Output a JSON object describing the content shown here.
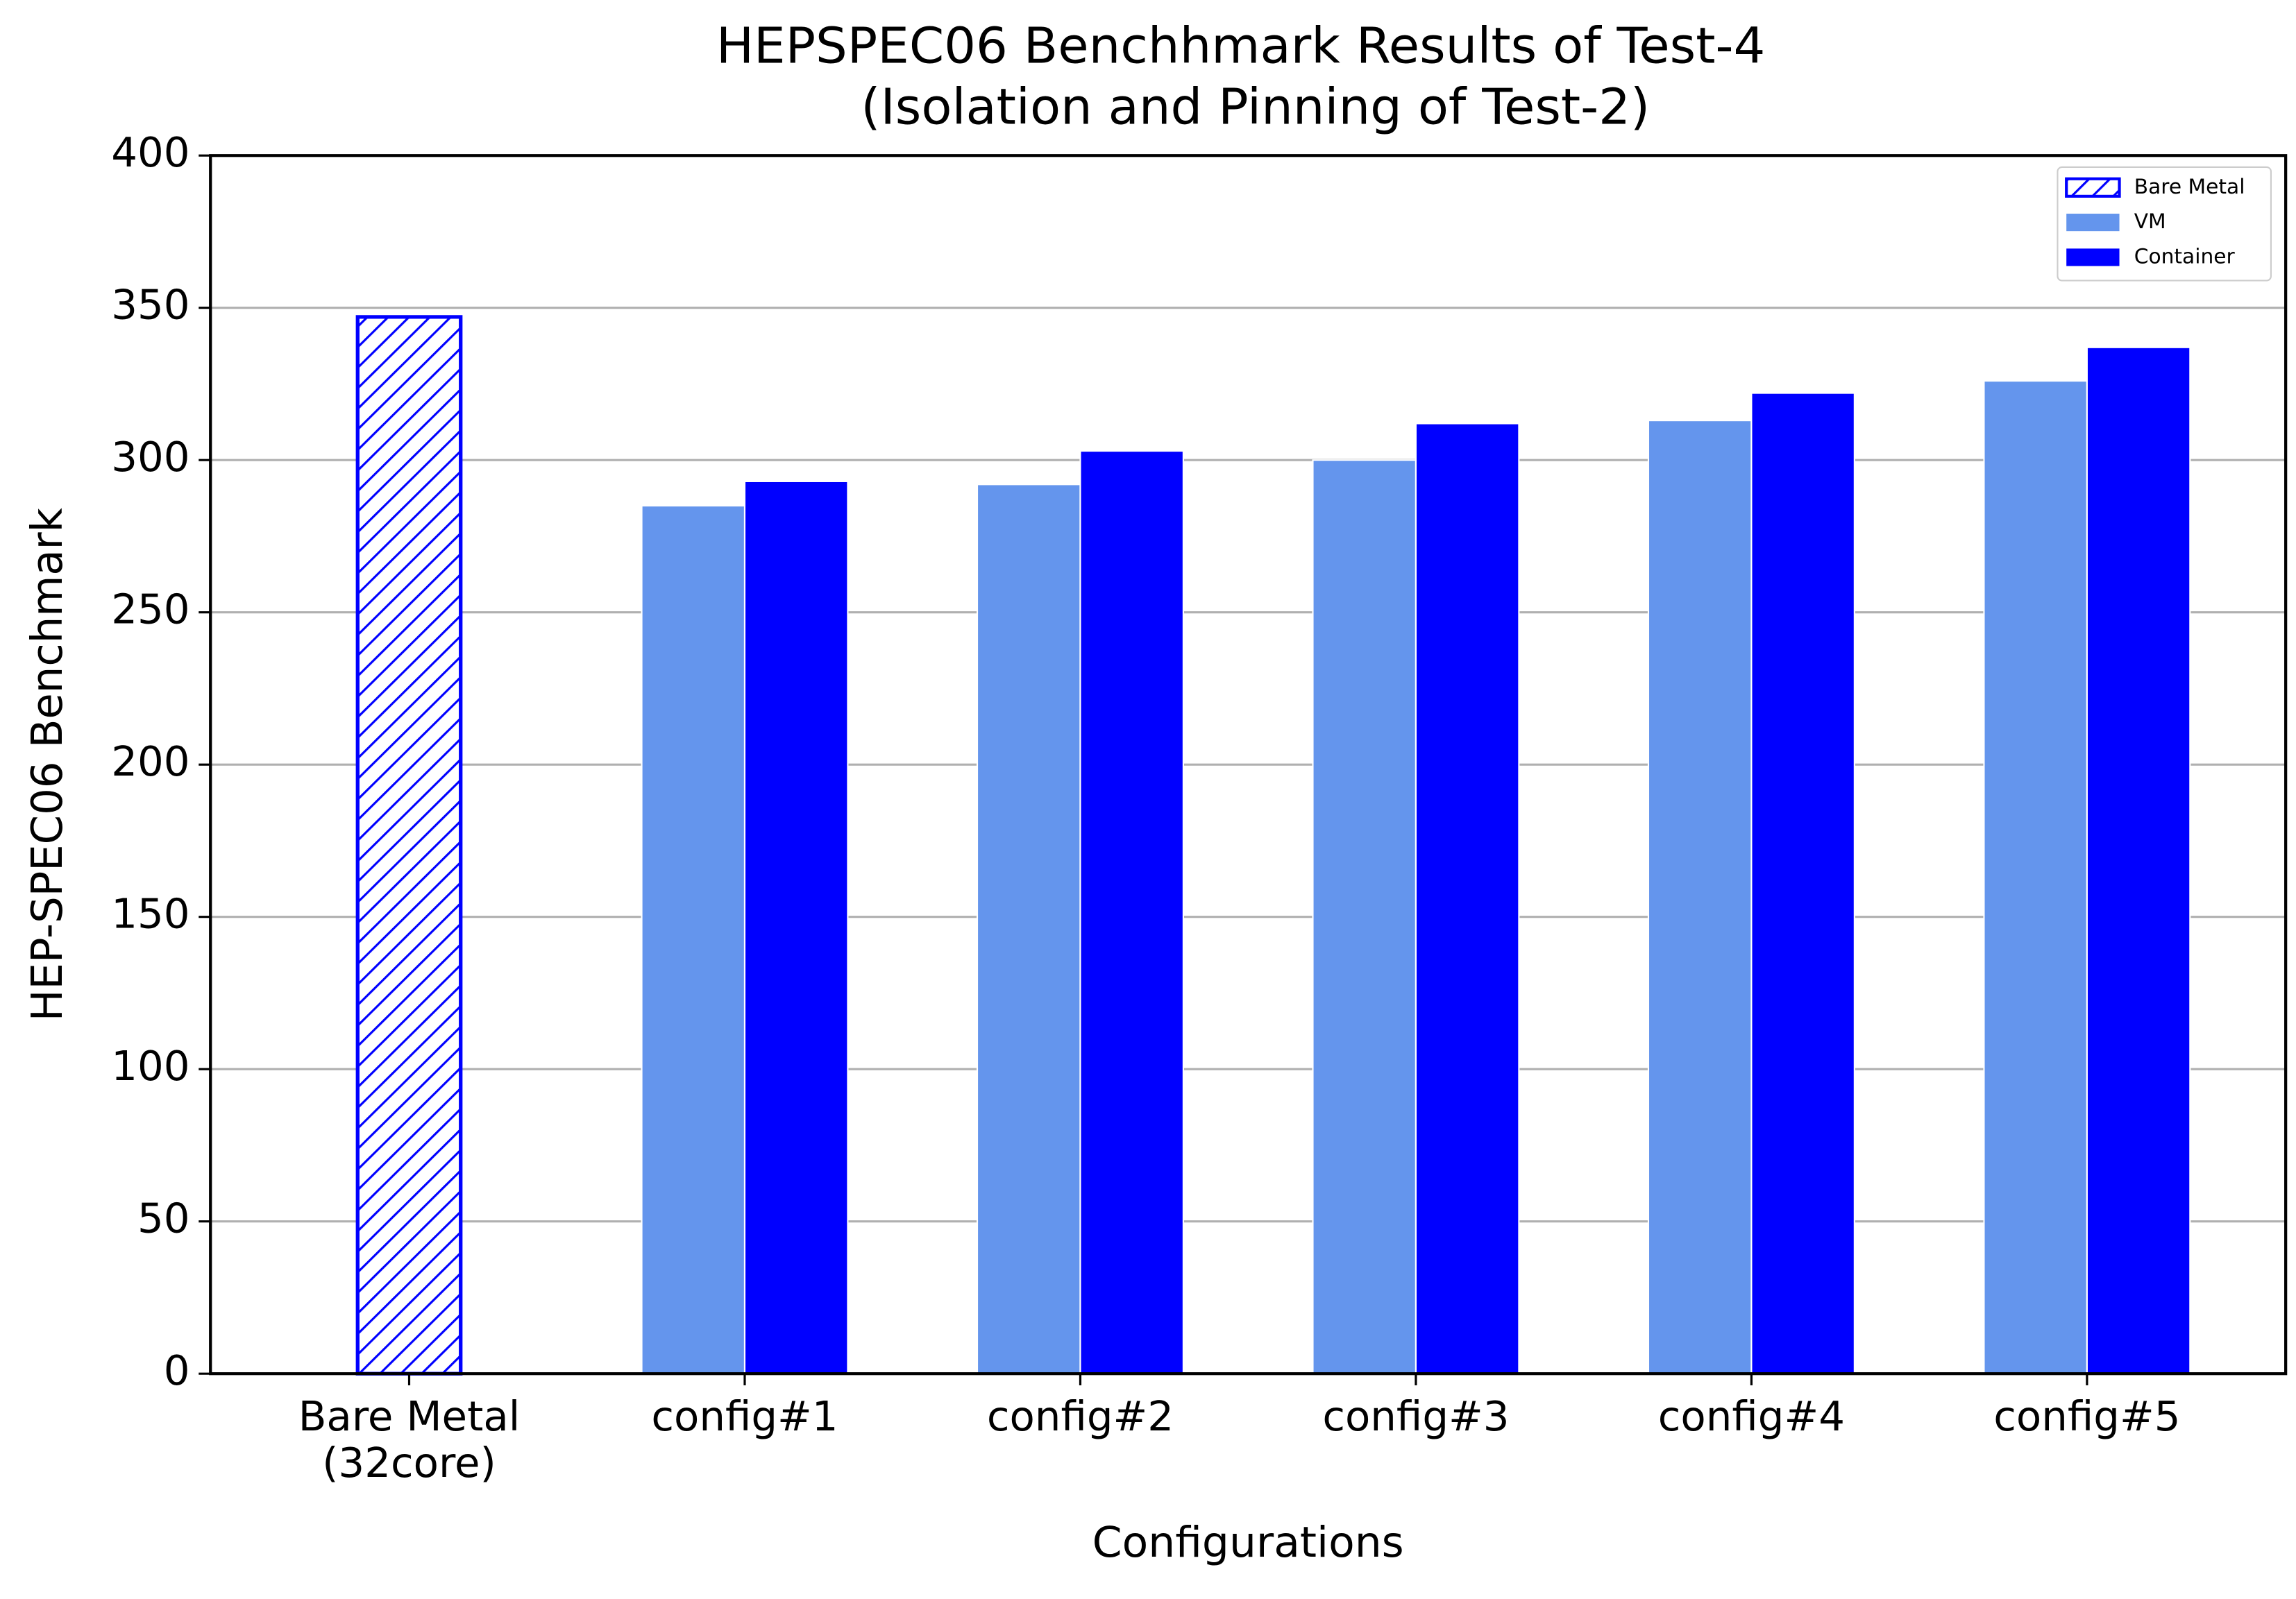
{
  "chart_data": {
    "type": "bar",
    "title": "HEPSPEC06 Benchhmark Results of Test-4",
    "subtitle": "(Isolation and Pinning of Test-2)",
    "x_label": "Configurations",
    "y_label": "HEP-SPEC06 Benchmark",
    "categories": [
      "Bare Metal\n(32core)",
      "config#1",
      "config#2",
      "config#3",
      "config#4",
      "config#5"
    ],
    "series": [
      {
        "name": "Bare Metal",
        "color": "#0000ff",
        "hatch": "////",
        "values": [
          347,
          null,
          null,
          null,
          null,
          null
        ]
      },
      {
        "name": "VM",
        "color": "#6495ed",
        "values": [
          null,
          285,
          292,
          300,
          313,
          326
        ]
      },
      {
        "name": "Container",
        "color": "#0000ff",
        "values": [
          null,
          293,
          303,
          312,
          322,
          337
        ]
      }
    ],
    "ylim": [
      0,
      400
    ],
    "yticks": [
      0,
      50,
      100,
      150,
      200,
      250,
      300,
      350,
      400
    ],
    "grid": true,
    "legend": "upper right"
  }
}
